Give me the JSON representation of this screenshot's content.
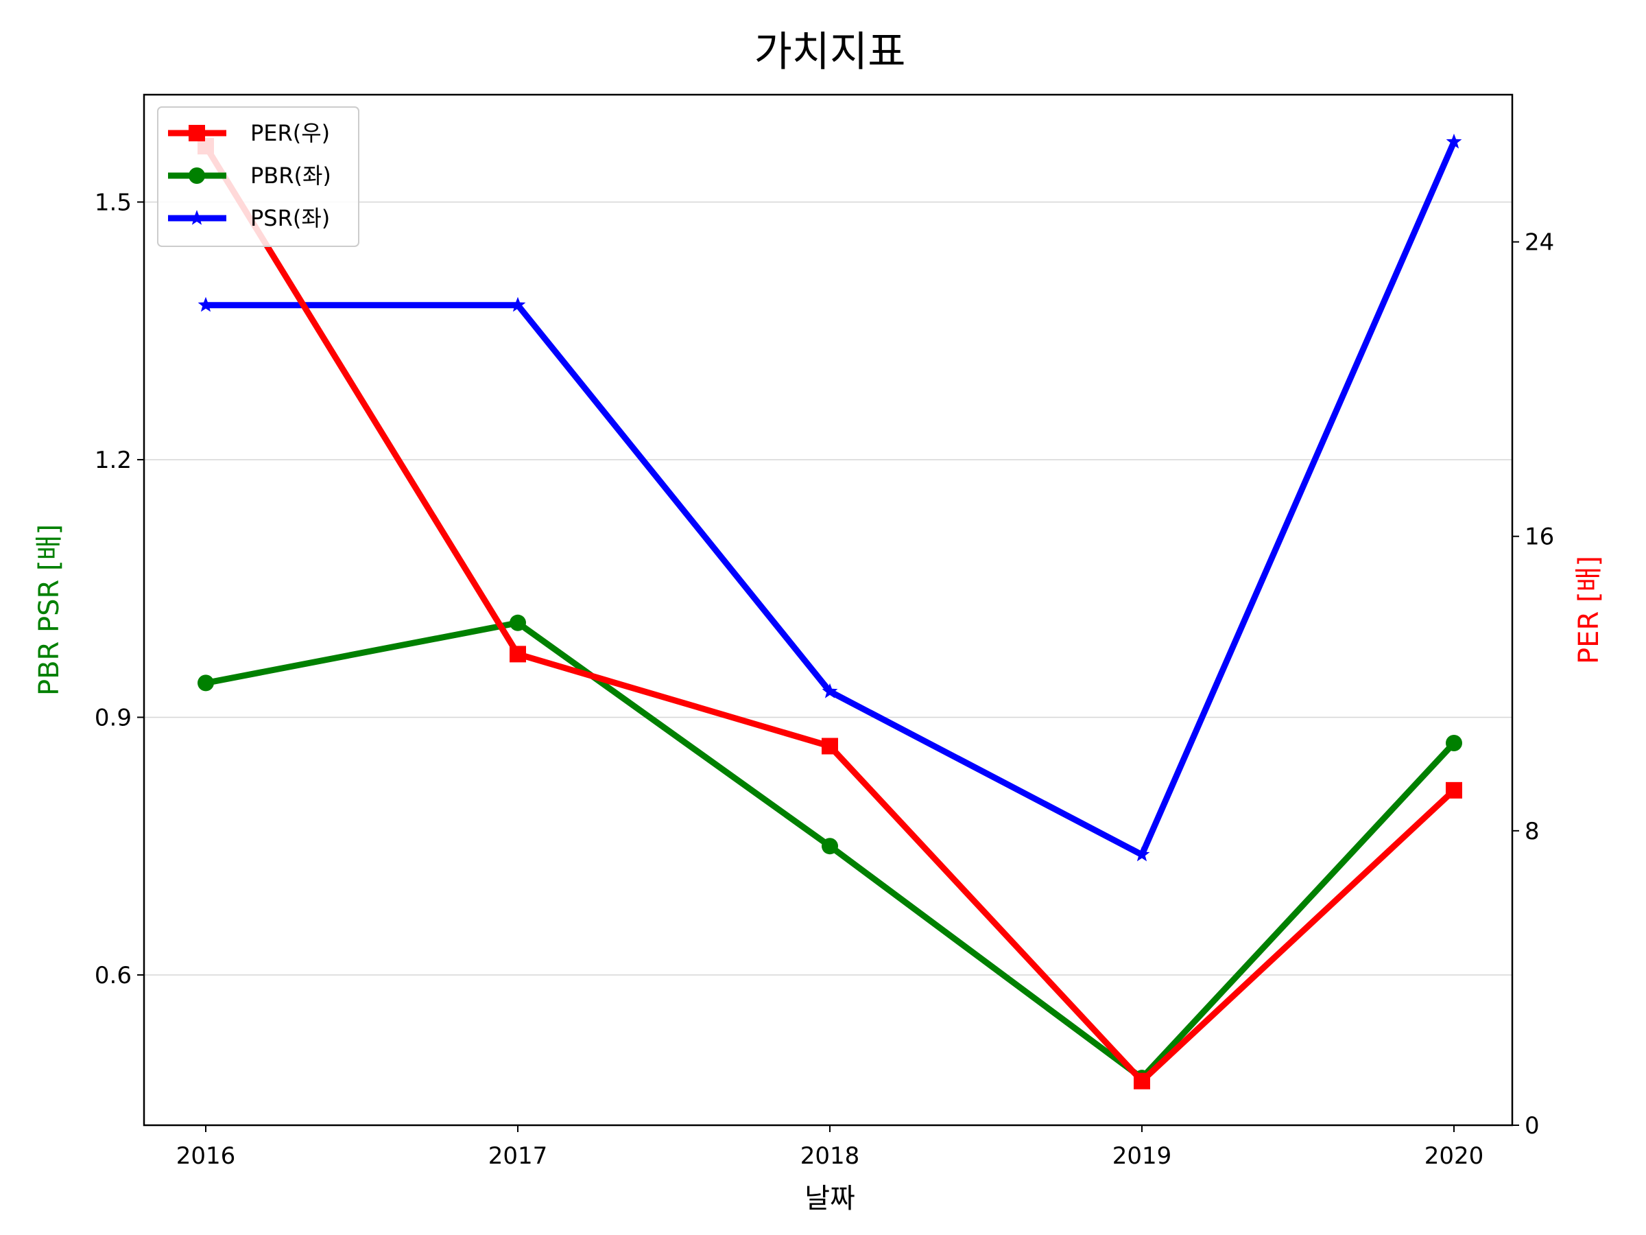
{
  "chart_data": {
    "type": "line",
    "title": "가치지표",
    "xlabel": "날짜",
    "ylabel_left": "PBR PSR [배]",
    "ylabel_right": "PER [배]",
    "ylabel_left_color": "#008000",
    "ylabel_right_color": "#ff0000",
    "categories": [
      "2016",
      "2017",
      "2018",
      "2019",
      "2020"
    ],
    "left_axis": {
      "ylim": [
        0.425,
        1.625
      ],
      "ticks": [
        "0.6",
        "0.9",
        "1.2",
        "1.5"
      ]
    },
    "right_axis": {
      "ylim": [
        0,
        28.0
      ],
      "ticks": [
        "0",
        "8",
        "16",
        "24"
      ]
    },
    "grid": "horizontal",
    "legend_position": "upper-left",
    "series": [
      {
        "name": "PER(우)",
        "axis": "right",
        "color": "#ff0000",
        "marker": "square",
        "values": [
          26.6,
          12.8,
          10.3,
          1.2,
          9.1
        ]
      },
      {
        "name": "PBR(좌)",
        "axis": "left",
        "color": "#008000",
        "marker": "circle",
        "values": [
          0.94,
          1.01,
          0.75,
          0.48,
          0.87
        ]
      },
      {
        "name": "PSR(좌)",
        "axis": "left",
        "color": "#0000ff",
        "marker": "star",
        "values": [
          1.38,
          1.38,
          0.93,
          0.74,
          1.57
        ]
      }
    ]
  }
}
